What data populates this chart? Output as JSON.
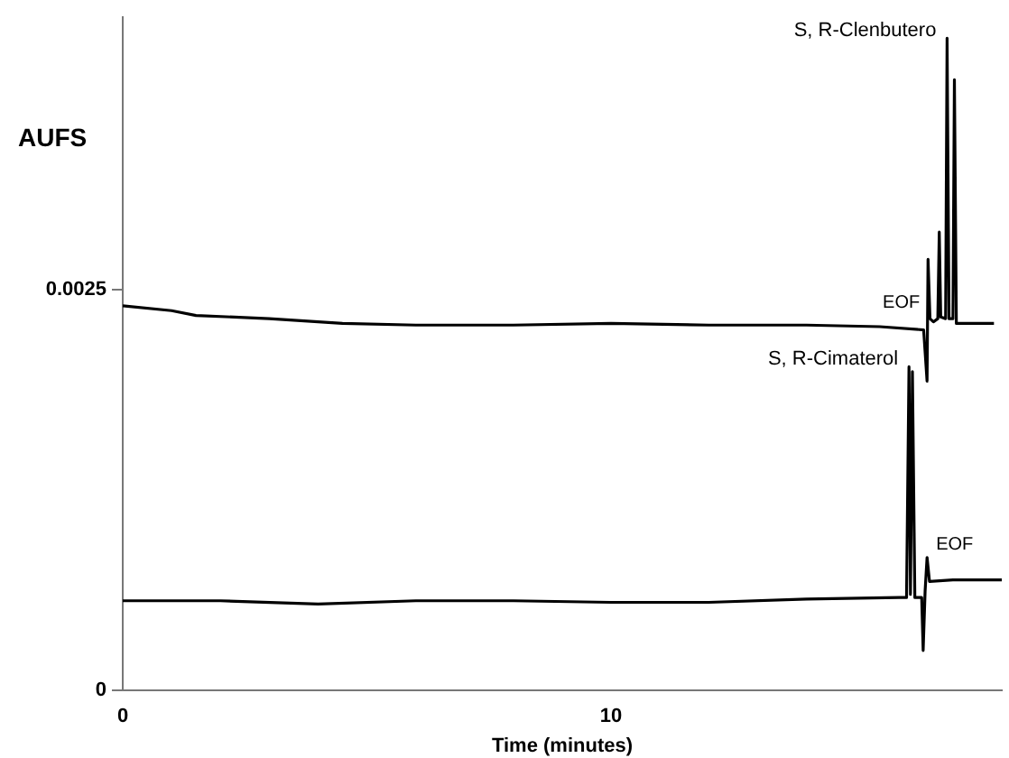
{
  "chart_data": {
    "type": "line",
    "ylabel": "AUFS",
    "xlabel": "Time (minutes)",
    "xlim": [
      0,
      18
    ],
    "ylim": [
      0,
      0.0042
    ],
    "xticks": [
      0,
      10
    ],
    "yticks": [
      0,
      0.0025
    ],
    "grid": false,
    "legend": false,
    "marker": "none",
    "line_style": "solid",
    "series": [
      {
        "name": "S, R-Clenbutero",
        "color": "#000000",
        "x": [
          0,
          1,
          1.5,
          3,
          4.5,
          6,
          8,
          10,
          12,
          14,
          15.5,
          16.4,
          16.47,
          16.49,
          16.53,
          16.6,
          16.69,
          16.72,
          16.75,
          16.85,
          16.88,
          16.92,
          17,
          17.03,
          17.07,
          17.3,
          17.84
        ],
        "values": [
          0.0024,
          0.00237,
          0.00234,
          0.00232,
          0.00229,
          0.00228,
          0.00228,
          0.00229,
          0.00228,
          0.00228,
          0.00227,
          0.00225,
          0.00193,
          0.00269,
          0.00232,
          0.0023,
          0.00232,
          0.00286,
          0.00233,
          0.00232,
          0.00407,
          0.00232,
          0.00232,
          0.00381,
          0.00229,
          0.00229,
          0.00229
        ]
      },
      {
        "name": "S, R-Cimaterol",
        "color": "#000000",
        "x": [
          0,
          2,
          4,
          6,
          8,
          10,
          12,
          14,
          15.9,
          16.05,
          16.1,
          16.13,
          16.17,
          16.22,
          16.36,
          16.39,
          16.43,
          16.47,
          16.52,
          17,
          18
        ],
        "values": [
          0.00056,
          0.00056,
          0.00054,
          0.00056,
          0.00056,
          0.00055,
          0.00055,
          0.00057,
          0.00058,
          0.00058,
          0.00202,
          0.0006,
          0.00199,
          0.00058,
          0.00058,
          0.00025,
          0.00062,
          0.00083,
          0.00068,
          0.00069,
          0.00069
        ]
      }
    ],
    "annotations": [
      {
        "text": "EOF",
        "x": 16.47,
        "y": 0.00235
      },
      {
        "text": "EOF",
        "x": 16.47,
        "y": 0.00083
      }
    ]
  }
}
